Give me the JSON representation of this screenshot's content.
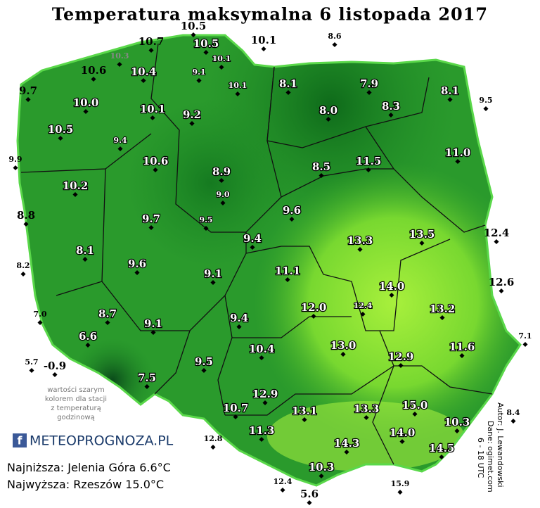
{
  "title": "Temperatura maksymalna 6 listopada 2017",
  "stations": [
    {
      "label": "10.5"
    },
    {
      "label": "10.1"
    },
    {
      "label": "8.6"
    },
    {
      "label": "10.7"
    },
    {
      "label": "10.5"
    },
    {
      "label": "10.1"
    },
    {
      "label": "10.3"
    },
    {
      "label": "10.6"
    },
    {
      "label": "10.4"
    },
    {
      "label": "9.1"
    },
    {
      "label": "10.1"
    },
    {
      "label": "8.1"
    },
    {
      "label": "7.9"
    },
    {
      "label": "8.1"
    },
    {
      "label": "9.5"
    },
    {
      "label": "9.7"
    },
    {
      "label": "10.0"
    },
    {
      "label": "10.1"
    },
    {
      "label": "9.2"
    },
    {
      "label": "8.0"
    },
    {
      "label": "8.3"
    },
    {
      "label": "10.5"
    },
    {
      "label": "9.4"
    },
    {
      "label": "9.9"
    },
    {
      "label": "10.6"
    },
    {
      "label": "8.9"
    },
    {
      "label": "8.5"
    },
    {
      "label": "11.5"
    },
    {
      "label": "11.0"
    },
    {
      "label": "10.2"
    },
    {
      "label": "9.0"
    },
    {
      "label": "8.8"
    },
    {
      "label": "9.7"
    },
    {
      "label": "9.5"
    },
    {
      "label": "9.6"
    },
    {
      "label": "13.3"
    },
    {
      "label": "13.5"
    },
    {
      "label": "12.4"
    },
    {
      "label": "9.4"
    },
    {
      "label": "8.1"
    },
    {
      "label": "8.2"
    },
    {
      "label": "9.6"
    },
    {
      "label": "9.1"
    },
    {
      "label": "11.1"
    },
    {
      "label": "14.0"
    },
    {
      "label": "12.6"
    },
    {
      "label": "7.0"
    },
    {
      "label": "12.4"
    },
    {
      "label": "12.0"
    },
    {
      "label": "13.2"
    },
    {
      "label": "8.7"
    },
    {
      "label": "9.1"
    },
    {
      "label": "9.4"
    },
    {
      "label": "7.1"
    },
    {
      "label": "6.6"
    },
    {
      "label": "13.0"
    },
    {
      "label": "11.6"
    },
    {
      "label": "10.4"
    },
    {
      "label": "12.9"
    },
    {
      "label": "5.7"
    },
    {
      "label": "-0.9"
    },
    {
      "label": "9.5"
    },
    {
      "label": "7.5"
    },
    {
      "label": "12.9"
    },
    {
      "label": "15.0"
    },
    {
      "label": "10.7"
    },
    {
      "label": "13.1"
    },
    {
      "label": "13.3"
    },
    {
      "label": "8.4"
    },
    {
      "label": "10.3"
    },
    {
      "label": "12.8"
    },
    {
      "label": "11.3"
    },
    {
      "label": "14.0"
    },
    {
      "label": "14.3"
    },
    {
      "label": "14.5"
    },
    {
      "label": "10.3"
    },
    {
      "label": "12.4"
    },
    {
      "label": "5.6"
    },
    {
      "label": "15.9"
    }
  ],
  "legend_note": [
    "wartości szarym",
    "kolorem dla stacji",
    "z temperaturą",
    "godzinową"
  ],
  "logo_icon": "f",
  "logo": "METEOPROGNOZA.PL",
  "summary": [
    "Najniższa: Jelenia Góra 6.6°C",
    "Najwyższa: Rzeszów 15.0°C"
  ],
  "credits": [
    "Autor: J. Lewandowski",
    "Dane: ogimet.com",
    "6 - 18 UTC"
  ]
}
